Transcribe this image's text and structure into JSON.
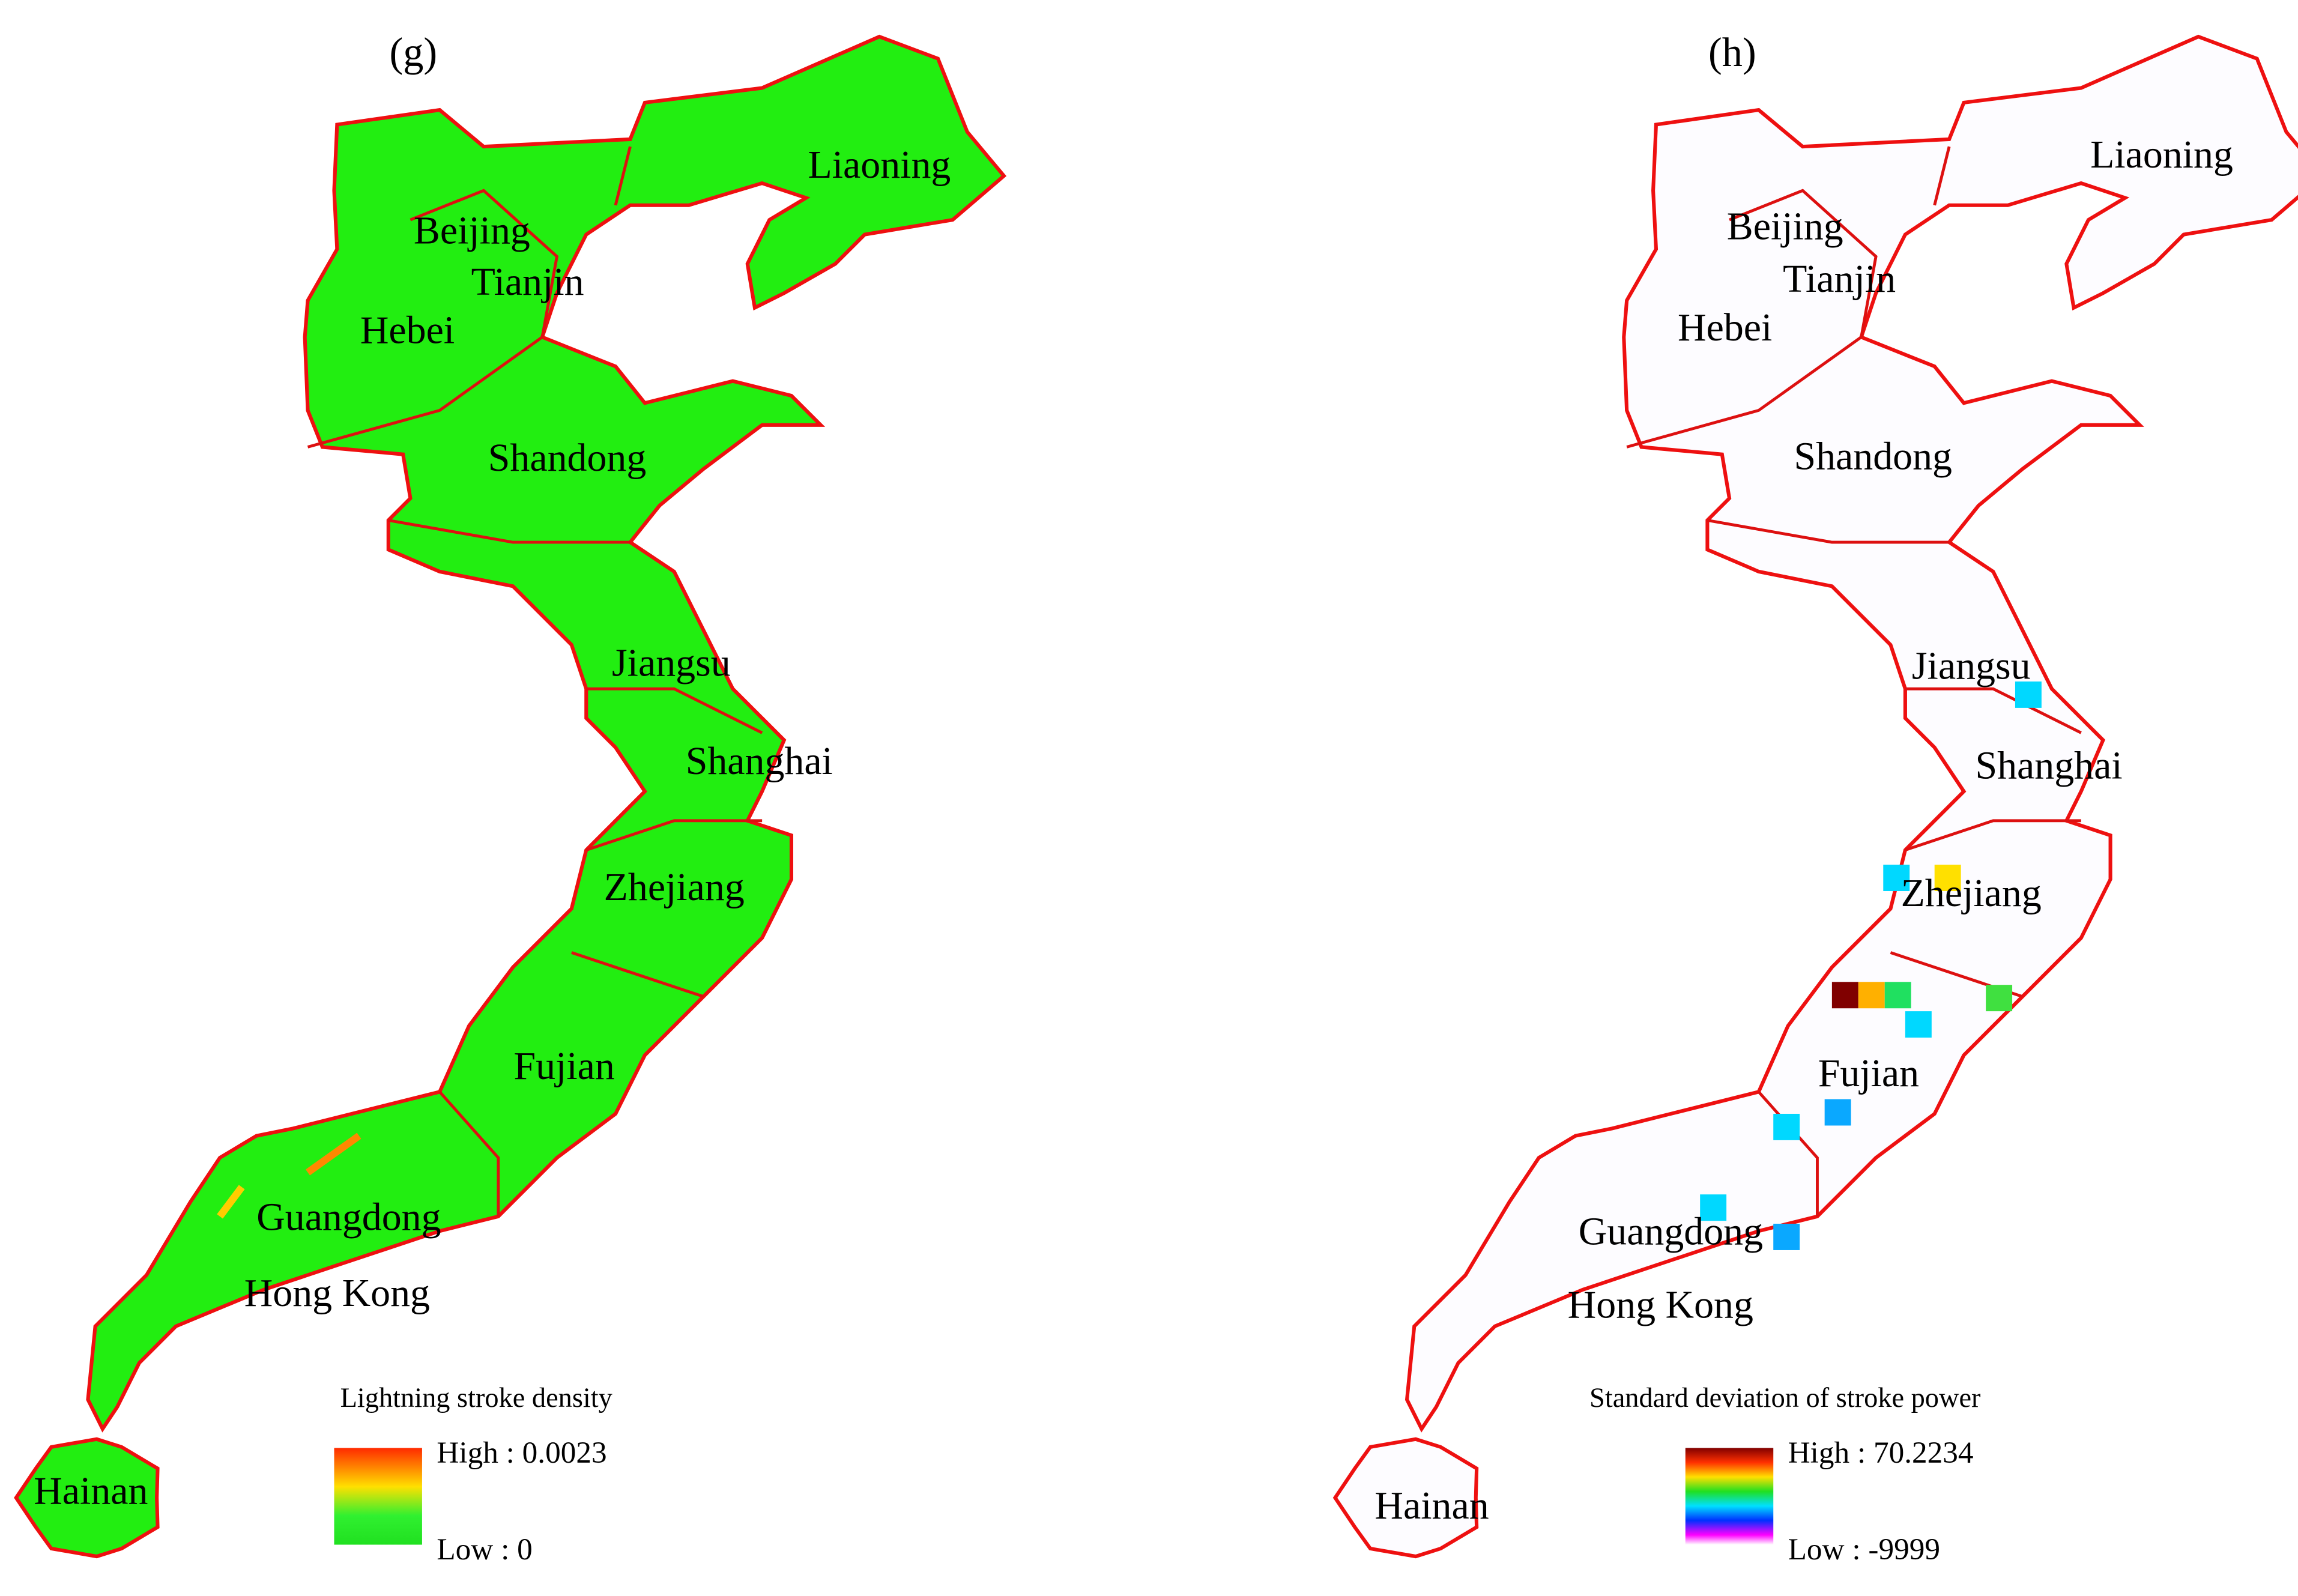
{
  "panels": [
    {
      "label": "(g)",
      "legend": {
        "title": "Lightning stroke density",
        "high": "High : 0.0023",
        "low": "Low : 0"
      },
      "places": [
        "Liaoning",
        "Beijing",
        "Tianjin",
        "Hebei",
        "Shandong",
        "Jiangsu",
        "Shanghai",
        "Zhejiang",
        "Fujian",
        "Guangdong",
        "Hong Kong",
        "Hainan"
      ]
    },
    {
      "label": "(h)",
      "legend": {
        "title": "Standard deviation of stroke power",
        "high": "High : 70.2234",
        "low": "Low : -9999"
      },
      "places": [
        "Liaoning",
        "Beijing",
        "Tianjin",
        "Hebei",
        "Shandong",
        "Jiangsu",
        "Shanghai",
        "Zhejiang",
        "Fujian",
        "Guangdong",
        "Hong Kong",
        "Hainan"
      ]
    }
  ]
}
